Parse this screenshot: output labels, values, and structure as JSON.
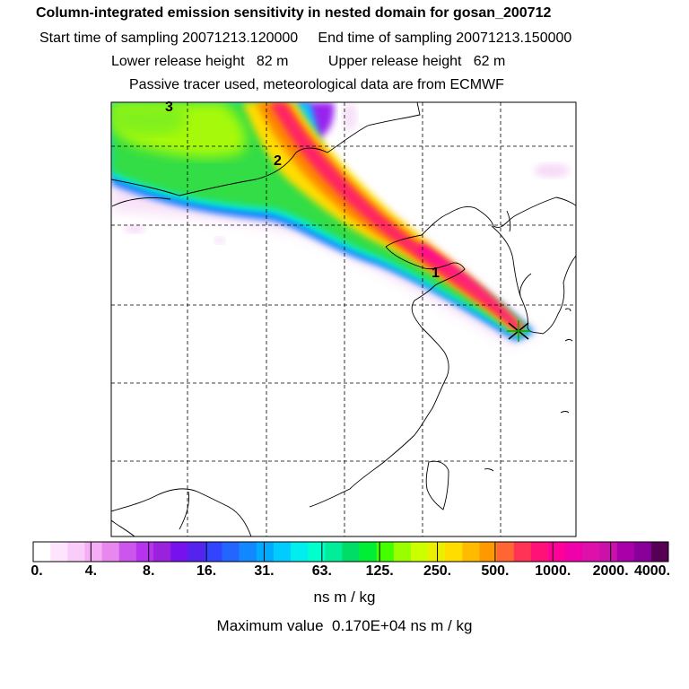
{
  "header": {
    "title": "Column-integrated emission sensitivity in nested domain for gosan_200712",
    "line2": "Start time of sampling 20071213.120000     End time of sampling 20071213.150000",
    "line3": "Lower release height   82 m          Upper release height   62 m",
    "line4": "Passive tracer used, meteorological data are from ECMWF"
  },
  "map": {
    "markers": [
      {
        "label": "3"
      },
      {
        "label": "2"
      },
      {
        "label": "1"
      }
    ],
    "receptor": "star-marker"
  },
  "colorbar": {
    "labels": [
      "0.",
      "4.",
      "8.",
      "16.",
      "31.",
      "63.",
      "125.",
      "250.",
      "500.",
      "1000.",
      "2000.",
      "4000."
    ],
    "colors": [
      "#ffffff",
      "#fde6fd",
      "#f9ccf9",
      "#f5aef5",
      "#e888ee",
      "#cc55ee",
      "#b833ee",
      "#9a22dd",
      "#7711ee",
      "#5522ee",
      "#3344ff",
      "#2266ff",
      "#1188ff",
      "#00aaff",
      "#00ccff",
      "#00eeee",
      "#00ffcc",
      "#00ee99",
      "#00dd66",
      "#00ee33",
      "#44ff00",
      "#99ff00",
      "#ccff00",
      "#eeee00",
      "#ffdd00",
      "#ffbb00",
      "#ff9900",
      "#ff6633",
      "#ff3355",
      "#ff1177",
      "#ff0099",
      "#ee00aa",
      "#dd11aa",
      "#cc11aa",
      "#aa00aa",
      "#880099",
      "#550055"
    ]
  },
  "units": "ns m / kg",
  "max_value": "Maximum value  0.170E+04 ns m / kg"
}
